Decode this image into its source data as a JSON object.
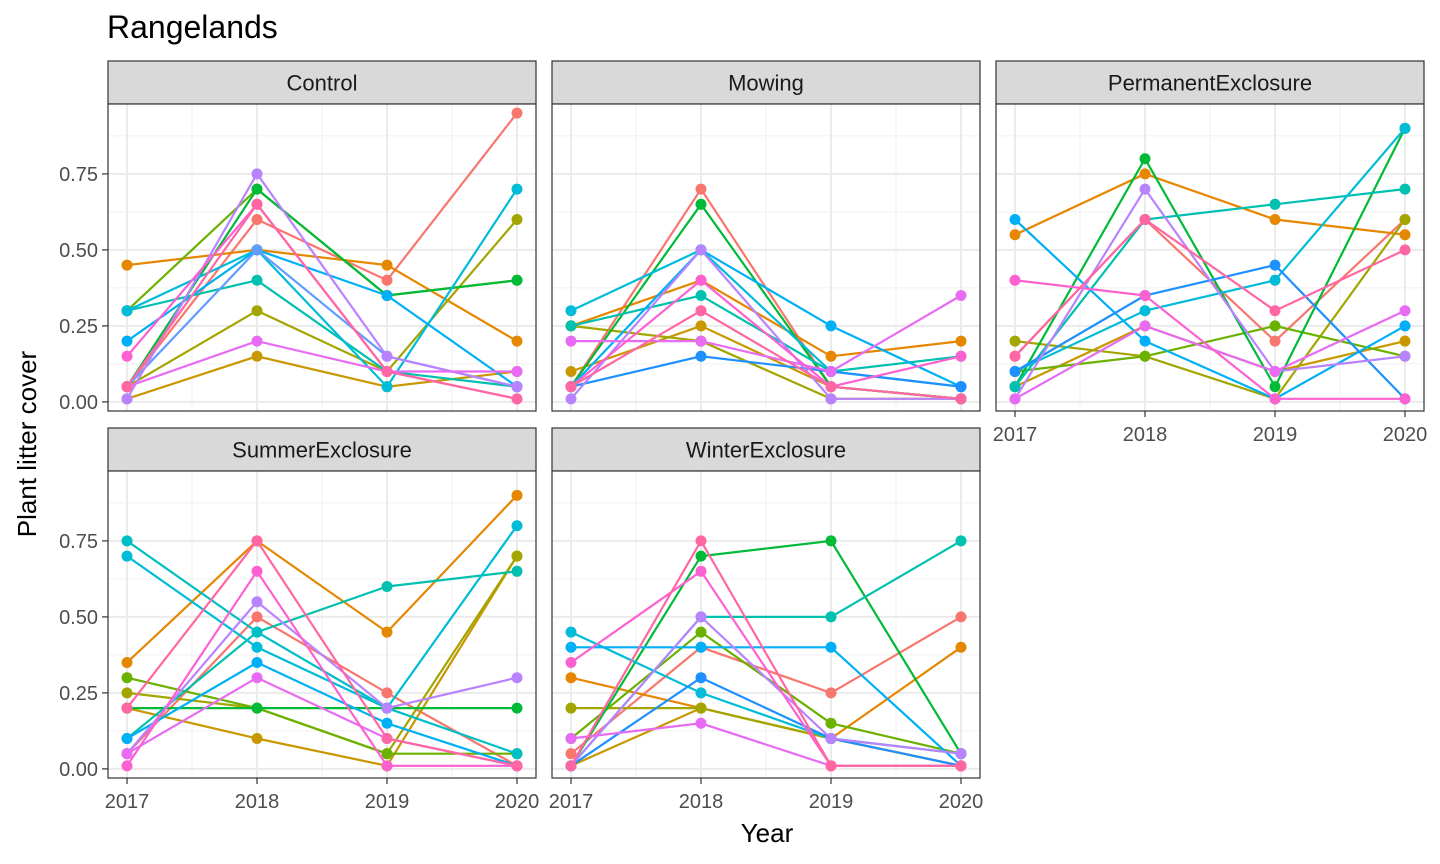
{
  "chart_data": {
    "type": "line",
    "title": "Rangelands",
    "xlabel": "Year",
    "ylabel": "Plant litter cover",
    "x": [
      "2017",
      "2018",
      "2019",
      "2020"
    ],
    "ylim": [
      -0.03,
      0.98
    ],
    "yticks": [
      "0.00",
      "0.25",
      "0.50",
      "0.75"
    ],
    "grid": true,
    "panels": [
      {
        "name": "Control",
        "series": [
          {
            "color": "#F8766D",
            "values": [
              0.05,
              0.6,
              0.4,
              0.95
            ]
          },
          {
            "color": "#E58700",
            "values": [
              0.45,
              0.5,
              0.45,
              0.2
            ]
          },
          {
            "color": "#C99800",
            "values": [
              0.01,
              0.15,
              0.05,
              0.1
            ]
          },
          {
            "color": "#A3A500",
            "values": [
              0.05,
              0.3,
              0.1,
              0.6
            ]
          },
          {
            "color": "#6BB100",
            "values": [
              0.3,
              0.7,
              0.35,
              0.4
            ]
          },
          {
            "color": "#00BA38",
            "values": [
              0.05,
              0.7,
              0.35,
              0.4
            ]
          },
          {
            "color": "#00C0AF",
            "values": [
              0.3,
              0.4,
              0.1,
              0.05
            ]
          },
          {
            "color": "#00BCD8",
            "values": [
              0.3,
              0.5,
              0.05,
              0.7
            ]
          },
          {
            "color": "#00B0F6",
            "values": [
              0.2,
              0.5,
              0.35,
              0.05
            ]
          },
          {
            "color": "#619CFF",
            "values": [
              0.05,
              0.5,
              0.15,
              0.05
            ]
          },
          {
            "color": "#B983FF",
            "values": [
              0.01,
              0.75,
              0.15,
              0.05
            ]
          },
          {
            "color": "#E76BF3",
            "values": [
              0.05,
              0.2,
              0.1,
              0.1
            ]
          },
          {
            "color": "#FD61D1",
            "values": [
              0.15,
              0.65,
              0.1,
              0.01
            ]
          },
          {
            "color": "#FF67A4",
            "values": [
              0.05,
              0.65,
              0.1,
              0.01
            ]
          }
        ]
      },
      {
        "name": "Mowing",
        "series": [
          {
            "color": "#F8766D",
            "values": [
              0.05,
              0.7,
              0.05,
              0.01
            ]
          },
          {
            "color": "#E58700",
            "values": [
              0.25,
              0.4,
              0.15,
              0.2
            ]
          },
          {
            "color": "#C99800",
            "values": [
              0.1,
              0.25,
              0.05,
              0.01
            ]
          },
          {
            "color": "#A3A500",
            "values": [
              0.25,
              0.2,
              0.01,
              0.01
            ]
          },
          {
            "color": "#00BA38",
            "values": [
              0.05,
              0.65,
              0.05,
              0.01
            ]
          },
          {
            "color": "#00C0AF",
            "values": [
              0.25,
              0.35,
              0.1,
              0.15
            ]
          },
          {
            "color": "#00BCD8",
            "values": [
              0.3,
              0.5,
              0.1,
              0.05
            ]
          },
          {
            "color": "#00B0F6",
            "values": [
              0.05,
              0.5,
              0.25,
              0.05
            ]
          },
          {
            "color": "#1E90FF",
            "values": [
              0.05,
              0.15,
              0.1,
              0.05
            ]
          },
          {
            "color": "#B983FF",
            "values": [
              0.01,
              0.5,
              0.01,
              0.01
            ]
          },
          {
            "color": "#E76BF3",
            "values": [
              0.2,
              0.2,
              0.1,
              0.35
            ]
          },
          {
            "color": "#FD61D1",
            "values": [
              0.05,
              0.4,
              0.05,
              0.15
            ]
          },
          {
            "color": "#FF67A4",
            "values": [
              0.05,
              0.3,
              0.05,
              0.01
            ]
          }
        ]
      },
      {
        "name": "PermanentExclosure",
        "series": [
          {
            "color": "#F8766D",
            "values": [
              0.15,
              0.6,
              0.2,
              0.6
            ]
          },
          {
            "color": "#E58700",
            "values": [
              0.55,
              0.75,
              0.6,
              0.55
            ]
          },
          {
            "color": "#C99800",
            "values": [
              0.05,
              0.25,
              0.1,
              0.2
            ]
          },
          {
            "color": "#A3A500",
            "values": [
              0.2,
              0.15,
              0.01,
              0.6
            ]
          },
          {
            "color": "#6BB100",
            "values": [
              0.1,
              0.15,
              0.25,
              0.15
            ]
          },
          {
            "color": "#00BA38",
            "values": [
              0.05,
              0.8,
              0.05,
              0.9
            ]
          },
          {
            "color": "#00C0AF",
            "values": [
              0.05,
              0.6,
              0.65,
              0.7
            ]
          },
          {
            "color": "#00BCD8",
            "values": [
              0.1,
              0.3,
              0.4,
              0.9
            ]
          },
          {
            "color": "#00B0F6",
            "values": [
              0.6,
              0.2,
              0.01,
              0.25
            ]
          },
          {
            "color": "#1E90FF",
            "values": [
              0.1,
              0.35,
              0.45,
              0.01
            ]
          },
          {
            "color": "#B983FF",
            "values": [
              0.01,
              0.7,
              0.1,
              0.15
            ]
          },
          {
            "color": "#E76BF3",
            "values": [
              0.01,
              0.25,
              0.1,
              0.3
            ]
          },
          {
            "color": "#FD61D1",
            "values": [
              0.4,
              0.35,
              0.01,
              0.01
            ]
          },
          {
            "color": "#FF67A4",
            "values": [
              0.15,
              0.6,
              0.3,
              0.5
            ]
          }
        ]
      },
      {
        "name": "SummerExclosure",
        "series": [
          {
            "color": "#F8766D",
            "values": [
              0.05,
              0.5,
              0.25,
              0.01
            ]
          },
          {
            "color": "#E58700",
            "values": [
              0.35,
              0.75,
              0.45,
              0.9
            ]
          },
          {
            "color": "#C99800",
            "values": [
              0.2,
              0.1,
              0.01,
              0.7
            ]
          },
          {
            "color": "#A3A500",
            "values": [
              0.25,
              0.2,
              0.05,
              0.7
            ]
          },
          {
            "color": "#6BB100",
            "values": [
              0.3,
              0.2,
              0.05,
              0.05
            ]
          },
          {
            "color": "#00BA38",
            "values": [
              0.2,
              0.2,
              0.2,
              0.2
            ]
          },
          {
            "color": "#00C0AF",
            "values": [
              0.1,
              0.45,
              0.6,
              0.65
            ]
          },
          {
            "color": "#00BCD8",
            "values": [
              0.7,
              0.4,
              0.2,
              0.8
            ]
          },
          {
            "color": "#00BFC4",
            "values": [
              0.75,
              0.45,
              0.2,
              0.05
            ]
          },
          {
            "color": "#00B0F6",
            "values": [
              0.1,
              0.35,
              0.15,
              0.01
            ]
          },
          {
            "color": "#B983FF",
            "values": [
              0.05,
              0.55,
              0.2,
              0.3
            ]
          },
          {
            "color": "#E76BF3",
            "values": [
              0.05,
              0.3,
              0.1,
              0.01
            ]
          },
          {
            "color": "#FD61D1",
            "values": [
              0.01,
              0.65,
              0.01,
              0.01
            ]
          },
          {
            "color": "#FF67A4",
            "values": [
              0.2,
              0.75,
              0.1,
              0.01
            ]
          }
        ]
      },
      {
        "name": "WinterExclosure",
        "series": [
          {
            "color": "#F8766D",
            "values": [
              0.05,
              0.4,
              0.25,
              0.5
            ]
          },
          {
            "color": "#E58700",
            "values": [
              0.3,
              0.2,
              0.1,
              0.4
            ]
          },
          {
            "color": "#C99800",
            "values": [
              0.01,
              0.2,
              0.1,
              0.01
            ]
          },
          {
            "color": "#A3A500",
            "values": [
              0.2,
              0.2,
              0.1,
              0.01
            ]
          },
          {
            "color": "#6BB100",
            "values": [
              0.1,
              0.45,
              0.15,
              0.05
            ]
          },
          {
            "color": "#00BA38",
            "values": [
              0.01,
              0.7,
              0.75,
              0.05
            ]
          },
          {
            "color": "#00C0AF",
            "values": [
              0.01,
              0.5,
              0.5,
              0.75
            ]
          },
          {
            "color": "#00BCD8",
            "values": [
              0.45,
              0.25,
              0.1,
              0.05
            ]
          },
          {
            "color": "#00B0F6",
            "values": [
              0.4,
              0.4,
              0.4,
              0.01
            ]
          },
          {
            "color": "#1E90FF",
            "values": [
              0.01,
              0.3,
              0.1,
              0.01
            ]
          },
          {
            "color": "#B983FF",
            "values": [
              0.01,
              0.5,
              0.1,
              0.05
            ]
          },
          {
            "color": "#E76BF3",
            "values": [
              0.1,
              0.15,
              0.01,
              0.01
            ]
          },
          {
            "color": "#FD61D1",
            "values": [
              0.35,
              0.65,
              0.01,
              0.01
            ]
          },
          {
            "color": "#FF67A4",
            "values": [
              0.01,
              0.75,
              0.01,
              0.01
            ]
          }
        ]
      }
    ]
  }
}
